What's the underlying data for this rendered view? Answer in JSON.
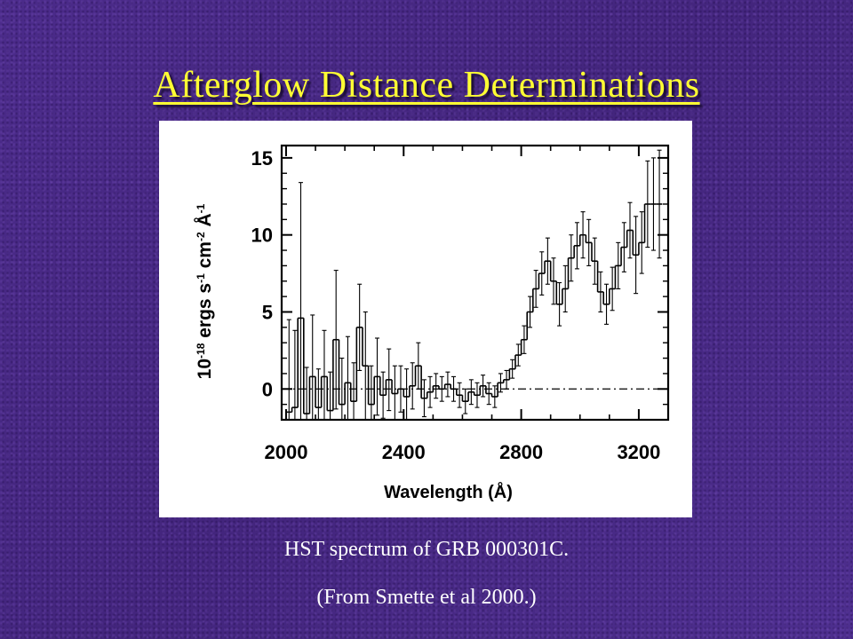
{
  "slide": {
    "title": "Afterglow Distance Determinations",
    "caption_line1": "HST spectrum of GRB 000301C.",
    "caption_line2": "(From Smette et al 2000.)"
  },
  "colors": {
    "title": "#ffff33",
    "caption": "#ffffff",
    "background": "#4a2a86",
    "plot_ink": "#000000"
  },
  "chart_data": {
    "type": "line",
    "style": "histogram-step",
    "title": "",
    "xlabel": "Wavelength (Å)",
    "ylabel_parts": {
      "pre": "10",
      "exp1": "-18",
      "mid1": " ergs s",
      "exp2": "-1",
      "mid2": " cm",
      "exp3": "-2",
      "mid3": " Å",
      "exp4": "-1"
    },
    "xlim": [
      1985,
      3300
    ],
    "ylim": [
      -2,
      15.8
    ],
    "x_ticks": [
      2000,
      2400,
      2800,
      3200
    ],
    "x_tick_labels": [
      "2000",
      "2400",
      "2800",
      "3200"
    ],
    "y_ticks": [
      0,
      5,
      10,
      15
    ],
    "y_tick_labels": [
      "0",
      "5",
      "10",
      "15"
    ],
    "zero_line": {
      "y": 0,
      "style": "dash-dot"
    },
    "bin_width": 20,
    "bins_x": [
      2000,
      2020,
      2040,
      2060,
      2080,
      2100,
      2120,
      2140,
      2160,
      2180,
      2200,
      2220,
      2240,
      2260,
      2280,
      2300,
      2320,
      2340,
      2360,
      2380,
      2400,
      2420,
      2440,
      2460,
      2480,
      2500,
      2520,
      2540,
      2560,
      2580,
      2600,
      2620,
      2640,
      2660,
      2680,
      2700,
      2720,
      2740,
      2760,
      2780,
      2800,
      2820,
      2840,
      2860,
      2880,
      2900,
      2920,
      2940,
      2960,
      2980,
      3000,
      3020,
      3040,
      3060,
      3080,
      3100,
      3120,
      3140,
      3160,
      3180,
      3200,
      3220,
      3240,
      3260
    ],
    "values": [
      -1.5,
      -1.2,
      4.6,
      -1.6,
      0.8,
      -1.2,
      0.8,
      -1.4,
      3.2,
      -1.0,
      0.4,
      -0.8,
      4.0,
      1.5,
      -1.0,
      0.8,
      -0.4,
      0.6,
      -0.3,
      0.0,
      -0.5,
      0.2,
      1.5,
      -0.6,
      -0.2,
      0.2,
      0.0,
      0.3,
      0.0,
      -0.4,
      -0.8,
      -0.2,
      -0.4,
      0.2,
      -0.3,
      -0.5,
      0.4,
      0.6,
      1.3,
      2.2,
      3.2,
      5.0,
      6.5,
      7.5,
      8.3,
      7.0,
      5.5,
      6.5,
      8.5,
      9.3,
      10.0,
      9.5,
      8.3,
      6.3,
      5.5,
      6.5,
      8.0,
      9.2,
      10.3,
      8.7,
      9.5,
      12.0,
      12.0,
      12.0
    ],
    "errors": [
      6,
      5,
      8.8,
      3,
      4,
      2.5,
      3,
      2.5,
      4.5,
      3,
      3,
      2.5,
      2.8,
      3.5,
      2.5,
      2.5,
      1.5,
      2.0,
      1.8,
      1.5,
      1.8,
      1.5,
      1.5,
      1.2,
      1.0,
      0.8,
      0.8,
      0.8,
      0.8,
      0.8,
      0.8,
      0.8,
      0.8,
      0.7,
      0.7,
      0.7,
      0.6,
      0.6,
      0.6,
      0.7,
      0.9,
      1.0,
      1.2,
      1.4,
      1.5,
      1.5,
      1.4,
      1.5,
      1.5,
      1.5,
      1.5,
      1.5,
      1.5,
      1.3,
      1.3,
      1.4,
      1.5,
      1.6,
      1.8,
      2.5,
      2.0,
      2.8,
      3.0,
      3.5
    ]
  }
}
